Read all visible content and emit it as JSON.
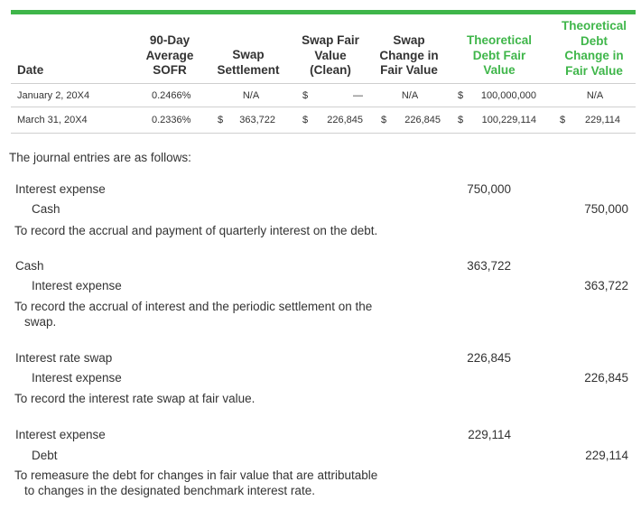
{
  "colors": {
    "accent": "#3fb64a",
    "text": "#333333",
    "rule": "#cfcfcf"
  },
  "table": {
    "headers": {
      "date": "Date",
      "sofr": [
        "90-Day",
        "Average",
        "SOFR"
      ],
      "swap_settlement": [
        "Swap",
        "Settlement"
      ],
      "swap_fair_value": [
        "Swap Fair",
        "Value",
        "(Clean)"
      ],
      "swap_change": [
        "Swap",
        "Change in",
        "Fair Value"
      ],
      "debt_fair_value": [
        "Theoretical",
        "Debt Fair",
        "Value"
      ],
      "debt_change": [
        "Theoretical",
        "Debt",
        "Change in",
        "Fair Value"
      ]
    },
    "rows": [
      {
        "date": "January 2, 20X4",
        "sofr": "0.2466%",
        "settlement": "N/A",
        "swap_fv_cur": "$",
        "swap_fv": "—",
        "swap_change": "N/A",
        "debt_fv_cur": "$",
        "debt_fv": "100,000,000",
        "debt_change": "N/A"
      },
      {
        "date": "March 31, 20X4",
        "sofr": "0.2336%",
        "settlement_cur": "$",
        "settlement": "363,722",
        "swap_fv_cur": "$",
        "swap_fv": "226,845",
        "swap_change_cur": "$",
        "swap_change": "226,845",
        "debt_fv_cur": "$",
        "debt_fv": "100,229,114",
        "debt_change_cur": "$",
        "debt_change": "229,114"
      }
    ]
  },
  "intro": "The journal entries are as follows:",
  "entries": [
    {
      "debit_account": "Interest expense",
      "debit_amount": "750,000",
      "credit_account": "Cash",
      "credit_amount": "750,000",
      "description": [
        "To record the accrual and payment of quarterly interest on the debt."
      ]
    },
    {
      "debit_account": "Cash",
      "debit_amount": "363,722",
      "credit_account": "Interest expense",
      "credit_amount": "363,722",
      "description": [
        "To record the accrual of interest and the periodic settlement on the",
        "swap."
      ]
    },
    {
      "debit_account": "Interest rate swap",
      "debit_amount": "226,845",
      "credit_account": "Interest expense",
      "credit_amount": "226,845",
      "description": [
        "To record the interest rate swap at fair value."
      ]
    },
    {
      "debit_account": "Interest expense",
      "debit_amount": "229,114",
      "credit_account": "Debt",
      "credit_amount": "229,114",
      "description": [
        "To remeasure the debt for changes in fair value that are attributable",
        "to changes in the designated benchmark interest rate."
      ]
    }
  ]
}
